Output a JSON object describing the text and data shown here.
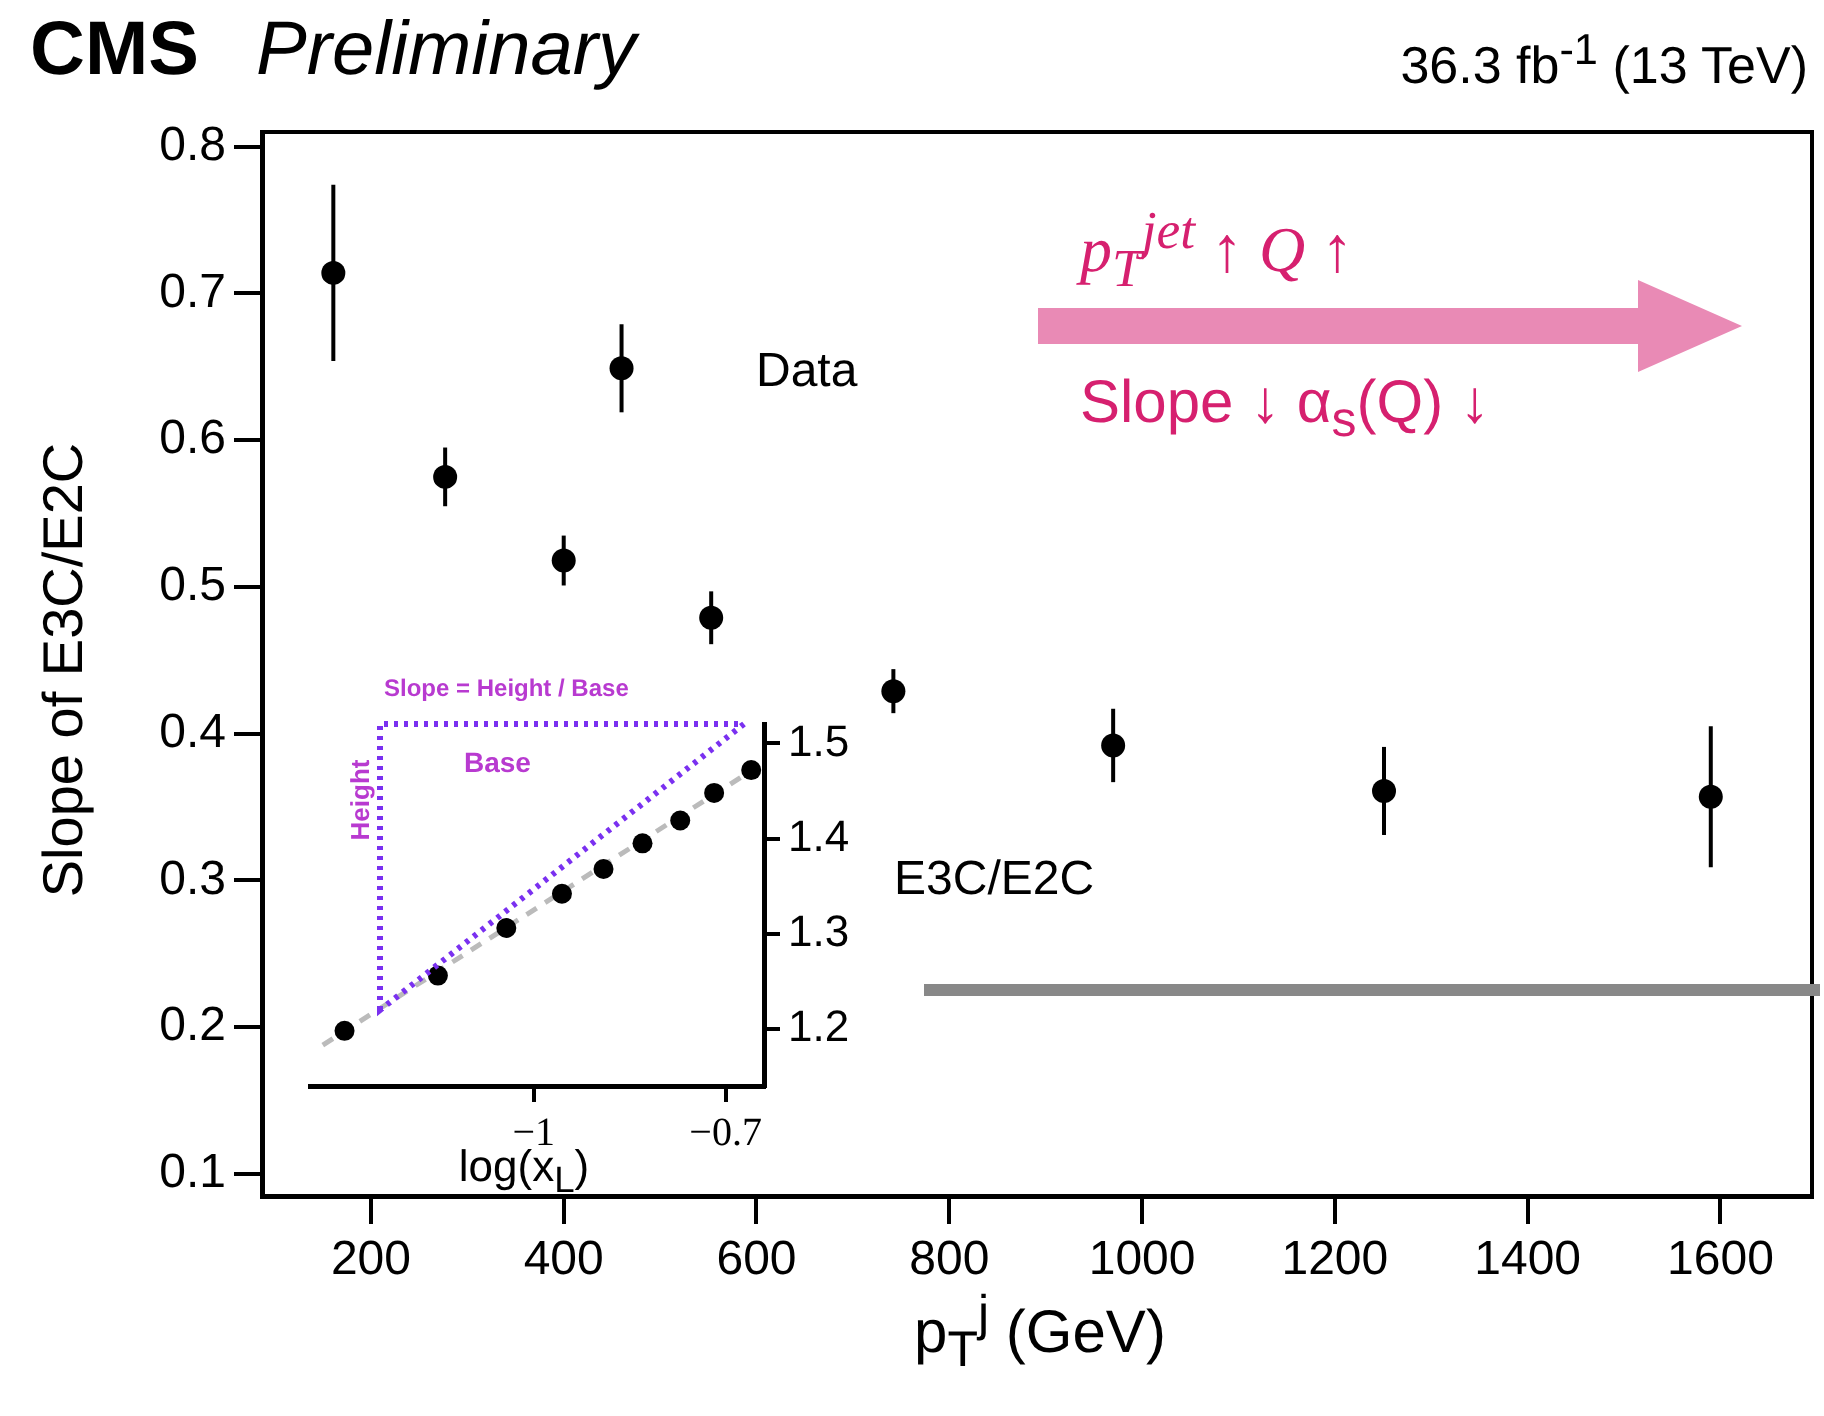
{
  "chart_data": [
    {
      "type": "scatter",
      "title": "CMS",
      "subtitle": "Preliminary",
      "xlabel": "p$_{T}$$^{j}$ (GeV)",
      "ylabel": "Slope of E3C/E2C",
      "annotations": [
        "36.3 fb$^{-1}$ (13 TeV)",
        "Data",
        "p$_{T}$$^{jet}$ ↑ Q ↑",
        "Slope ↓ α$_{s}$(Q) ↓"
      ],
      "series": [
        {
          "color": "#000000",
          "x": [
            161,
            277,
            400,
            460,
            553,
            742,
            970,
            1251,
            1590
          ],
          "values": [
            0.714,
            0.575,
            0.518,
            0.649,
            0.479,
            0.429,
            0.392,
            0.361,
            0.357
          ],
          "errors": [
            0.06,
            0.02,
            0.017,
            0.03,
            0.018,
            0.015,
            0.025,
            0.03,
            0.048
          ]
        }
      ],
      "marker": "circle",
      "grid": false,
      "xlim": [
        87,
        1695
      ],
      "xticks": [
        200,
        400,
        600,
        800,
        1000,
        1200,
        1400,
        1600
      ],
      "ylim": [
        0.085,
        0.81
      ],
      "yticks": [
        0.1,
        0.2,
        0.3,
        0.4,
        0.5,
        0.6,
        0.7,
        0.8
      ]
    },
    {
      "type": "scatter",
      "xlabel": "log(x$_{L}$)",
      "ylabel": "E3C/E2C",
      "annotations": [
        "Slope = Height / Base",
        "Height",
        "Base"
      ],
      "series": [
        {
          "color": "#000000",
          "x": [
            -1.296,
            -1.15,
            -1.043,
            -0.956,
            -0.891,
            -0.83,
            -0.771,
            -0.718,
            -0.66
          ],
          "values": [
            1.198,
            1.256,
            1.306,
            1.342,
            1.368,
            1.395,
            1.419,
            1.448,
            1.472
          ]
        },
        {
          "type": "line",
          "color": "#bbbbbb",
          "line_style": "dashed",
          "marker": "none",
          "x": [
            -1.33,
            -0.64
          ],
          "values": [
            1.183,
            1.48
          ]
        }
      ],
      "marker": "circle",
      "grid": false,
      "xlim": [
        -1.35,
        -0.64
      ],
      "xticks": [
        {
          "value": -1,
          "label": "−1"
        },
        {
          "value": -0.7,
          "label": "−0.7"
        }
      ],
      "ylim": [
        1.14,
        1.52
      ],
      "yticks": [
        1.2,
        1.3,
        1.4,
        1.5
      ]
    }
  ]
}
